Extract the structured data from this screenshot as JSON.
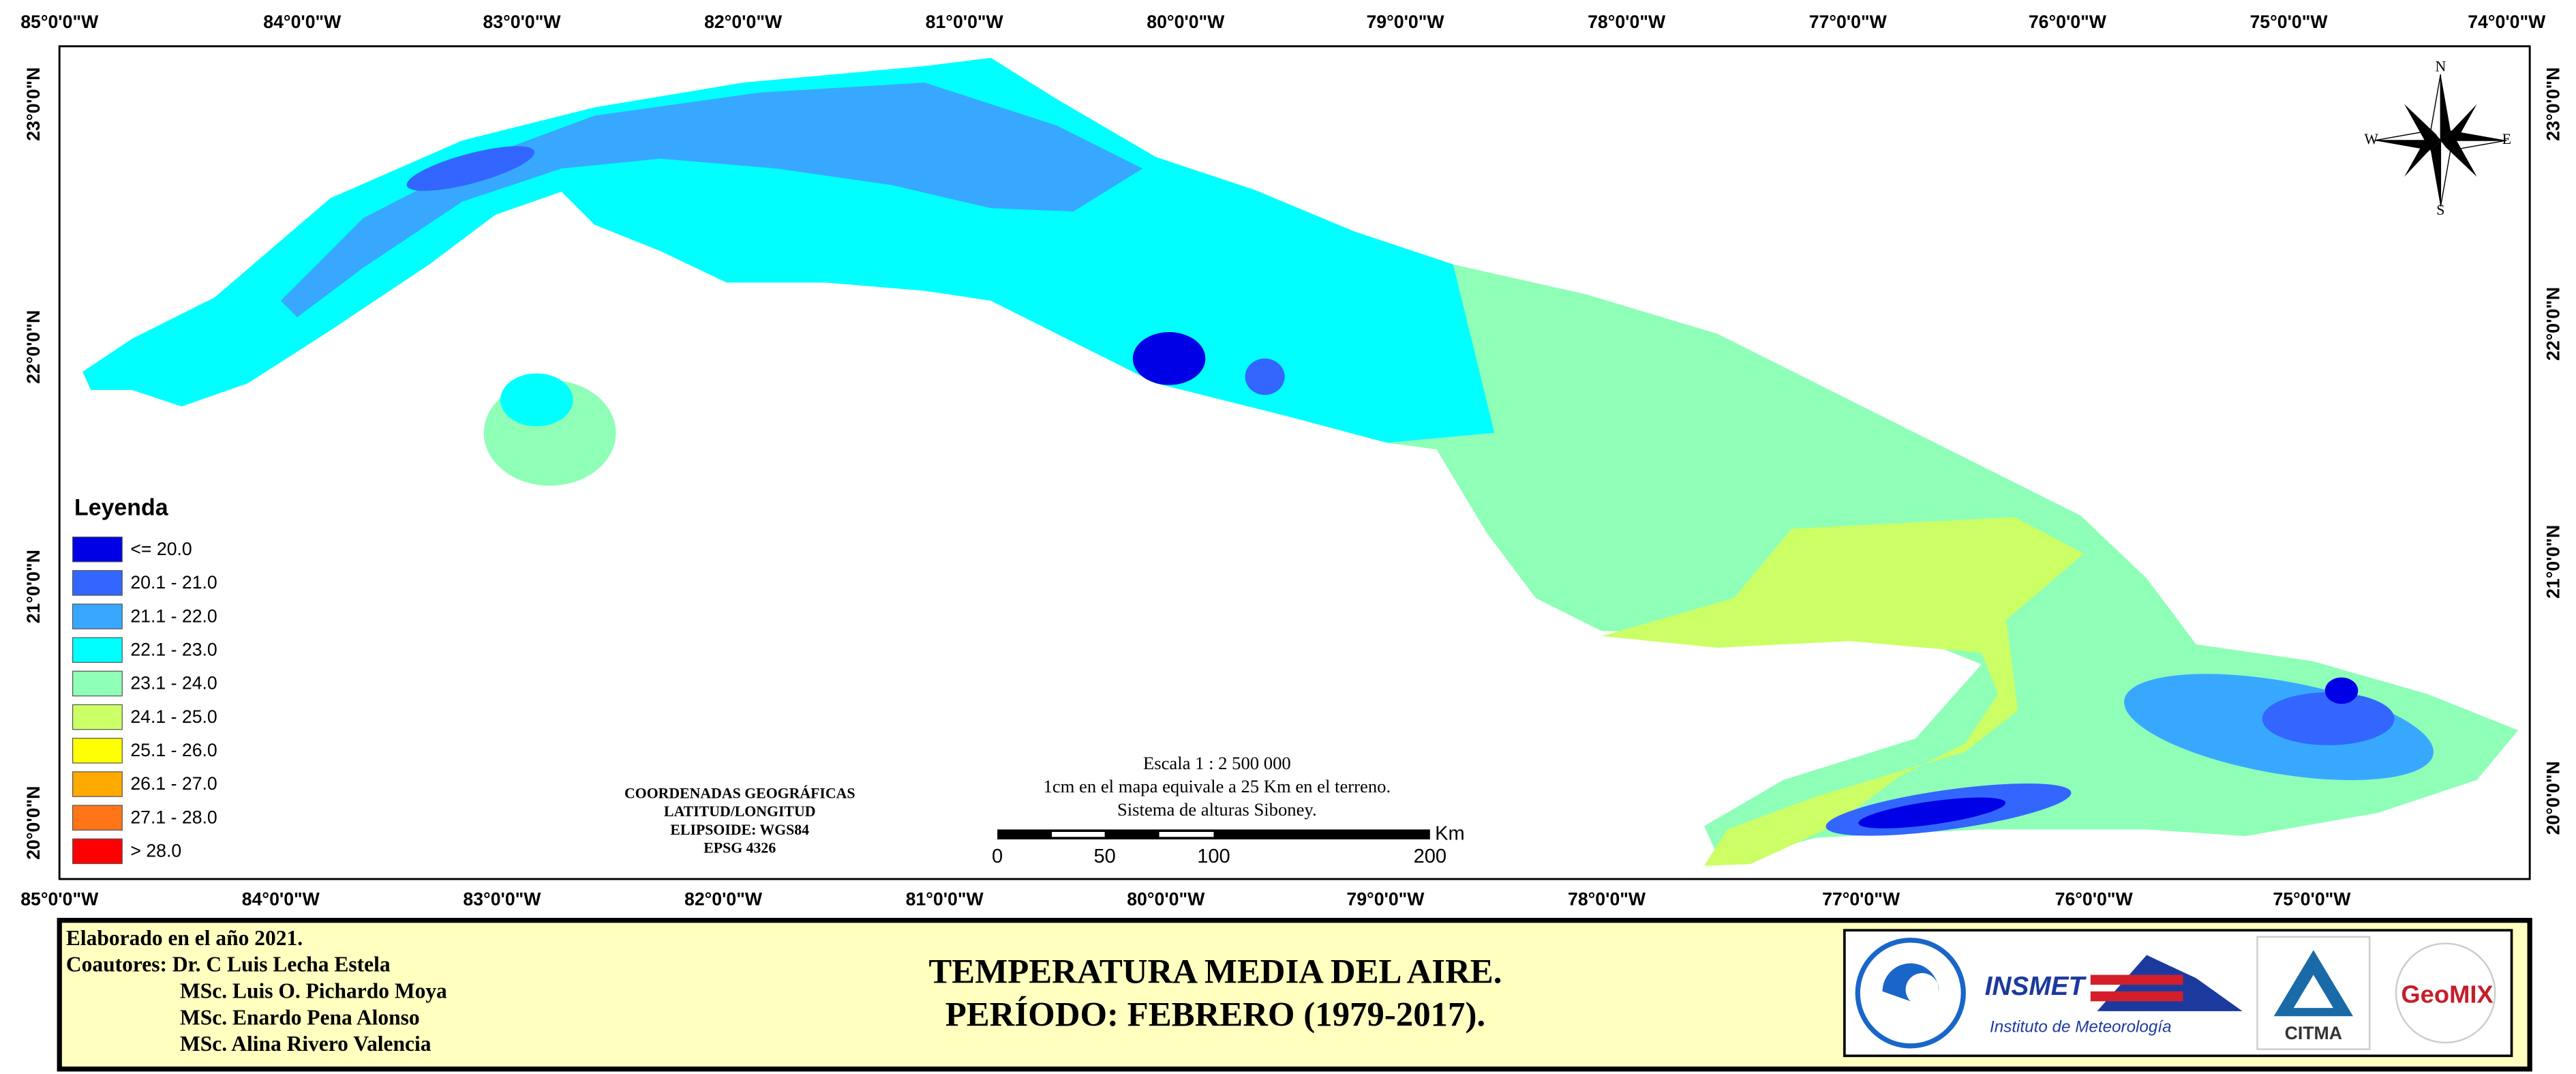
{
  "map": {
    "graticule": {
      "top": [
        "85°0'0\"W",
        "84°0'0\"W",
        "83°0'0\"W",
        "82°0'0\"W",
        "81°0'0\"W",
        "80°0'0\"W",
        "79°0'0\"W",
        "78°0'0\"W",
        "77°0'0\"W",
        "76°0'0\"W",
        "75°0'0\"W",
        "74°0'0\"W"
      ],
      "bottom": [
        "85°0'0\"W",
        "84°0'0\"W",
        "83°0'0\"W",
        "82°0'0\"W",
        "81°0'0\"W",
        "80°0'0\"W",
        "79°0'0\"W",
        "78°0'0\"W",
        "77°0'0\"W",
        "76°0'0\"W",
        "75°0'0\"W"
      ],
      "left": [
        "23°0'0\"N",
        "22°0'0\"N",
        "21°0'0\"N",
        "20°0'0\"N"
      ],
      "right": [
        "23°0'0\"N",
        "22°0'0\"N",
        "21°0'0\"N",
        "20°0'0\"N"
      ]
    },
    "legend": {
      "title": "Leyenda",
      "items": [
        {
          "label": "<= 20.0",
          "color": "#0000e6"
        },
        {
          "label": "20.1 - 21.0",
          "color": "#3366ff"
        },
        {
          "label": "21.1 - 22.0",
          "color": "#38a8ff"
        },
        {
          "label": "22.1 - 23.0",
          "color": "#00ffff"
        },
        {
          "label": "23.1 - 24.0",
          "color": "#8fffb8"
        },
        {
          "label": "24.1 - 25.0",
          "color": "#ccff66"
        },
        {
          "label": "25.1 - 26.0",
          "color": "#ffff00"
        },
        {
          "label": "26.1 - 27.0",
          "color": "#ffaa00"
        },
        {
          "label": "27.1 - 28.0",
          "color": "#ff7518"
        },
        {
          "label": "> 28.0",
          "color": "#ff0000"
        }
      ]
    },
    "coordinates": [
      "COORDENADAS GEOGRÁFICAS",
      "LATITUD/LONGITUD",
      "ELIPSOIDE: WGS84",
      "EPSG 4326"
    ],
    "scale": {
      "lines": [
        "Escala 1 : 2 500 000",
        "1cm en el mapa equivale a 25 Km en el terreno.",
        "Sistema de alturas Siboney."
      ],
      "ticks": [
        0,
        50,
        100,
        200
      ],
      "unit": "Km"
    },
    "compass": {
      "north": "N",
      "south": "S",
      "east": "E",
      "west": "W"
    }
  },
  "footer": {
    "credits": [
      "Elaborado en el año 2021.",
      "Coautores: Dr. C Luis Lecha Estela",
      "MSc. Luis O. Pichardo Moya",
      "MSc. Enardo Pena Alonso",
      "MSc. Alina Rivero Valencia"
    ],
    "title": [
      "TEMPERATURA MEDIA DEL AIRE.",
      "PERÍODO: FEBRERO (1979-2017)."
    ],
    "logos": {
      "insmet": "INSMET",
      "insmet_sub": "Instituto de Meteorología",
      "citma": "CITMA",
      "geomix": "GeoMIX"
    }
  }
}
